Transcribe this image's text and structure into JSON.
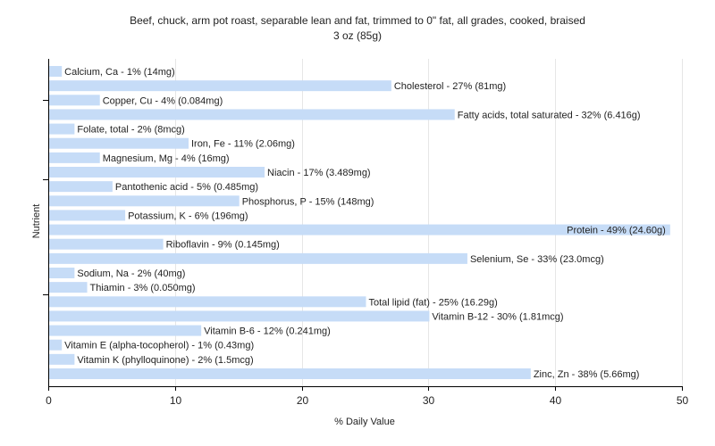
{
  "chart_data": {
    "type": "bar",
    "orientation": "horizontal",
    "title": "Beef, chuck, arm pot roast, separable lean and fat, trimmed to 0\" fat, all grades, cooked, braised",
    "subtitle": "3 oz (85g)",
    "xlabel": "% Daily Value",
    "ylabel": "Nutrient",
    "xlim": [
      0,
      50
    ],
    "xticks": [
      "0",
      "10",
      "20",
      "30",
      "40",
      "50"
    ],
    "grid": true,
    "bar_color": "#c6dcf7",
    "categories": [
      "Calcium, Ca",
      "Cholesterol",
      "Copper, Cu",
      "Fatty acids, total saturated",
      "Folate, total",
      "Iron, Fe",
      "Magnesium, Mg",
      "Niacin",
      "Pantothenic acid",
      "Phosphorus, P",
      "Potassium, K",
      "Protein",
      "Riboflavin",
      "Selenium, Se",
      "Sodium, Na",
      "Thiamin",
      "Total lipid (fat)",
      "Vitamin B-12",
      "Vitamin B-6",
      "Vitamin E (alpha-tocopherol)",
      "Vitamin K (phylloquinone)",
      "Zinc, Zn"
    ],
    "values": [
      1,
      27,
      4,
      32,
      2,
      11,
      4,
      17,
      5,
      15,
      6,
      49,
      9,
      33,
      2,
      3,
      25,
      30,
      12,
      1,
      2,
      38
    ],
    "labels": [
      "Calcium, Ca - 1% (14mg)",
      "Cholesterol - 27% (81mg)",
      "Copper, Cu - 4% (0.084mg)",
      "Fatty acids, total saturated - 32% (6.416g)",
      "Folate, total - 2% (8mcg)",
      "Iron, Fe - 11% (2.06mg)",
      "Magnesium, Mg - 4% (16mg)",
      "Niacin - 17% (3.489mg)",
      "Pantothenic acid - 5% (0.485mg)",
      "Phosphorus, P - 15% (148mg)",
      "Potassium, K - 6% (196mg)",
      "Protein - 49% (24.60g)",
      "Riboflavin - 9% (0.145mg)",
      "Selenium, Se - 33% (23.0mcg)",
      "Sodium, Na - 2% (40mg)",
      "Thiamin - 3% (0.050mg)",
      "Total lipid (fat) - 25% (16.29g)",
      "Vitamin B-12 - 30% (1.81mcg)",
      "Vitamin B-6 - 12% (0.241mg)",
      "Vitamin E (alpha-tocopherol) - 1% (0.43mg)",
      "Vitamin K (phylloquinone) - 2% (1.5mcg)",
      "Zinc, Zn - 38% (5.66mg)"
    ]
  }
}
